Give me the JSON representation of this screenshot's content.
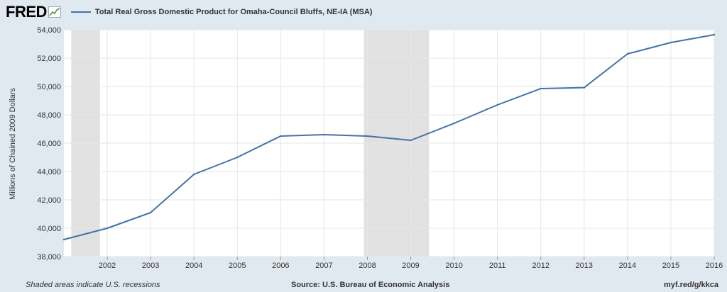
{
  "header": {
    "logo": "FRED",
    "legend_label": "Total Real Gross Domestic Product for Omaha-Council Bluffs, NE-IA (MSA)"
  },
  "footer": {
    "note": "Shaded areas indicate U.S. recessions",
    "source": "Source: U.S. Bureau of Economic Analysis",
    "url": "myf.red/g/kkca"
  },
  "colors": {
    "background": "#e1e9f0",
    "plot": "#ffffff",
    "line": "#4572a7",
    "recession": "#e1e1e1",
    "grid": "#e6e6e6"
  },
  "chart_data": {
    "type": "line",
    "title": "",
    "xlabel": "",
    "ylabel": "Millions of Chained 2009 Dollars",
    "x": [
      2001,
      2002,
      2003,
      2004,
      2005,
      2006,
      2007,
      2008,
      2009,
      2010,
      2011,
      2012,
      2013,
      2014,
      2015,
      2016
    ],
    "series": [
      {
        "name": "Total Real Gross Domestic Product for Omaha-Council Bluffs, NE-IA (MSA)",
        "values": [
          39200,
          40000,
          41100,
          43800,
          45000,
          46500,
          46600,
          46500,
          46200,
          47400,
          48700,
          49850,
          49920,
          52300,
          53100,
          53650
        ]
      }
    ],
    "xticks": [
      "2002",
      "2003",
      "2004",
      "2005",
      "2006",
      "2007",
      "2008",
      "2009",
      "2010",
      "2011",
      "2012",
      "2013",
      "2014",
      "2015",
      "2016"
    ],
    "ylim": [
      38000,
      54000
    ],
    "yticks": [
      "38,000",
      "40,000",
      "42,000",
      "44,000",
      "46,000",
      "48,000",
      "50,000",
      "52,000",
      "54,000"
    ],
    "recessions": [
      {
        "start": 2001.17,
        "end": 2001.83
      },
      {
        "start": 2007.92,
        "end": 2009.42
      }
    ],
    "grid": true,
    "legend": "top-left"
  }
}
